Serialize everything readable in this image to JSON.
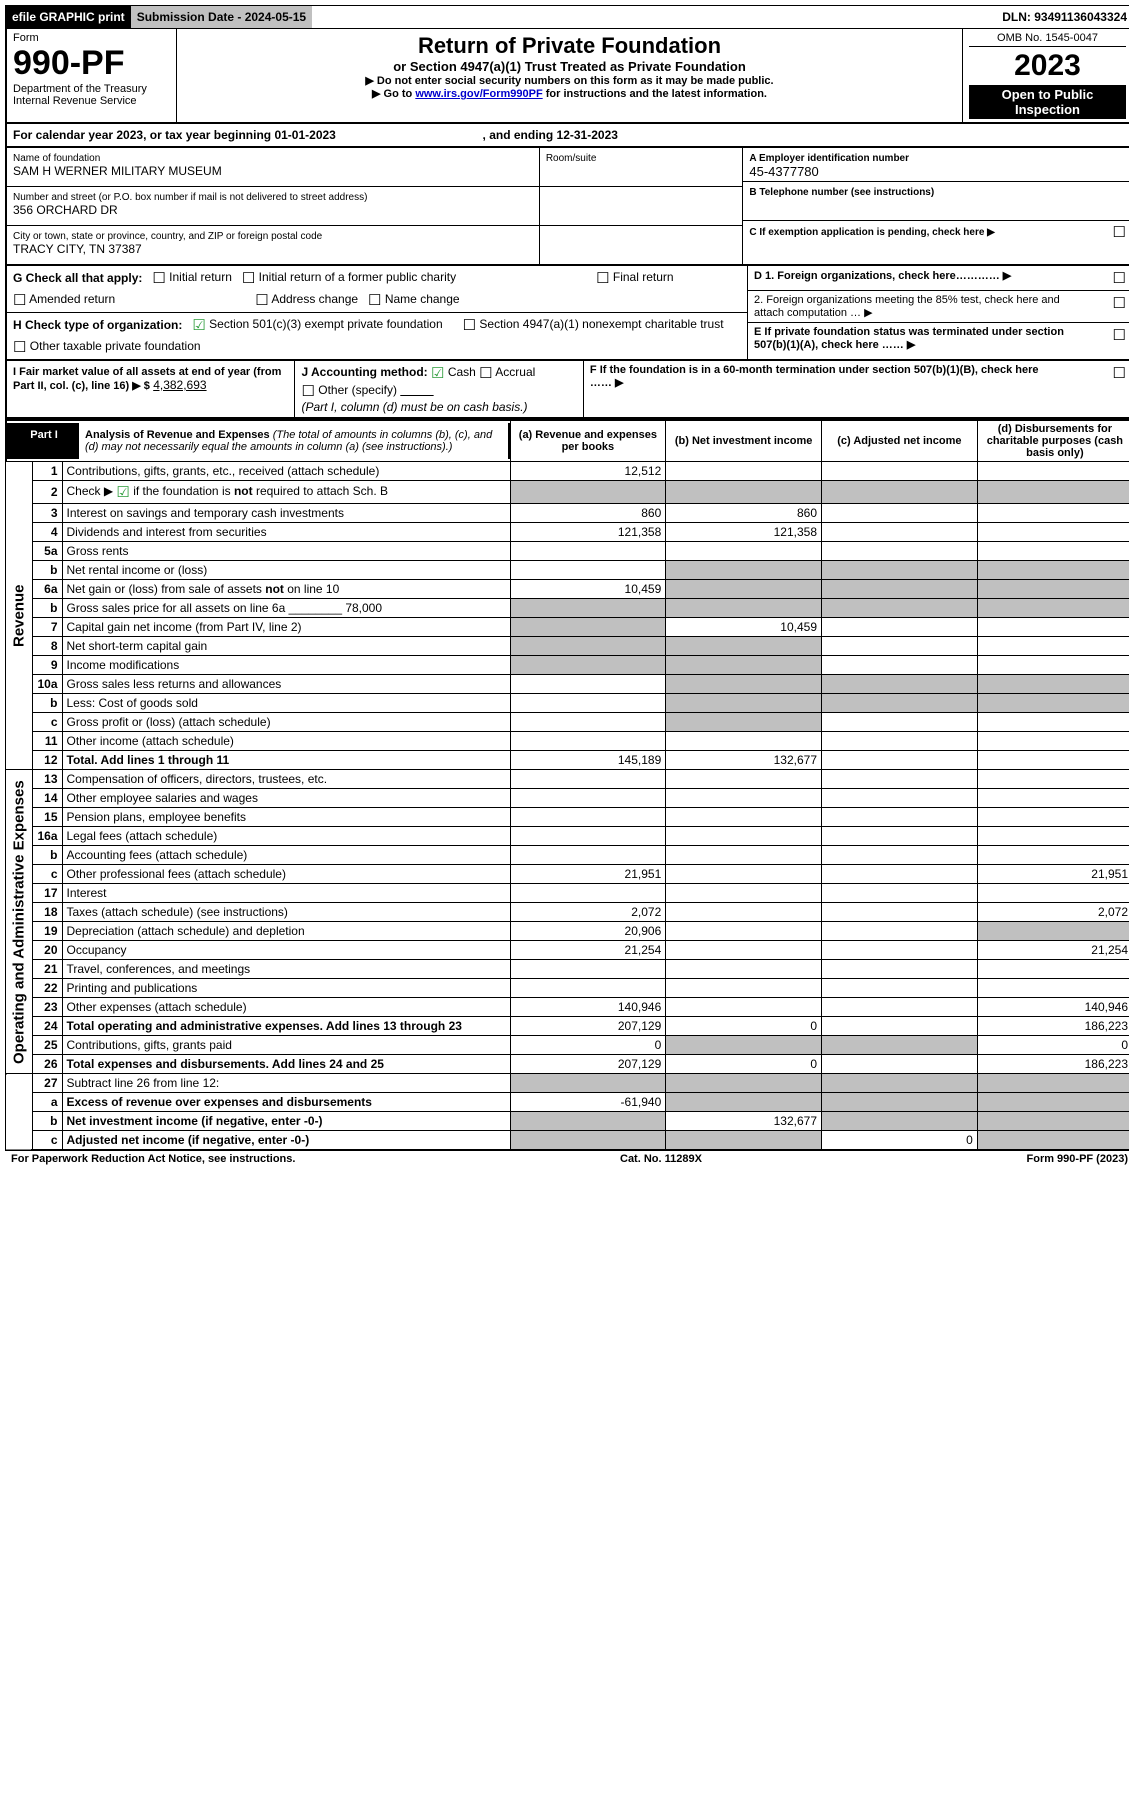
{
  "topbar": {
    "efile": "efile GRAPHIC print",
    "submission": "Submission Date - 2024-05-15",
    "dln": "DLN: 93491136043324"
  },
  "header": {
    "form_label": "Form",
    "form_number": "990-PF",
    "dept": "Department of the Treasury",
    "irs": "Internal Revenue Service",
    "title": "Return of Private Foundation",
    "subtitle": "or Section 4947(a)(1) Trust Treated as Private Foundation",
    "warn1": "▶ Do not enter social security numbers on this form as it may be made public.",
    "warn2": "▶ Go to ",
    "warn2_link": "www.irs.gov/Form990PF",
    "warn2_after": " for instructions and the latest information.",
    "omb": "OMB No. 1545-0047",
    "year": "2023",
    "open": "Open to Public Inspection"
  },
  "calendar": {
    "text1": "For calendar year 2023, or tax year beginning ",
    "begin": "01-01-2023",
    "text2": ", and ending ",
    "end": "12-31-2023"
  },
  "org": {
    "name_label": "Name of foundation",
    "name": "SAM H WERNER MILITARY MUSEUM",
    "addr_label": "Number and street (or P.O. box number if mail is not delivered to street address)",
    "addr": "356 ORCHARD DR",
    "room_label": "Room/suite",
    "city_label": "City or town, state or province, country, and ZIP or foreign postal code",
    "city": "TRACY CITY, TN  37387"
  },
  "right": {
    "a_label": "A Employer identification number",
    "a_val": "45-4377780",
    "b_label": "B Telephone number (see instructions)",
    "c_label": "C If exemption application is pending, check here ▶",
    "d1_label": "D 1. Foreign organizations, check here………… ▶",
    "d2_label": "2. Foreign organizations meeting the 85% test, check here and attach computation … ▶",
    "e_label": "E If private foundation status was terminated under section 507(b)(1)(A), check here …… ▶",
    "f_label": "F If the foundation is in a 60-month termination under section 507(b)(1)(B), check here …… ▶"
  },
  "g": {
    "prefix": "G Check all that apply:",
    "opts": [
      "Initial return",
      "Initial return of a former public charity",
      "Final return",
      "Amended return",
      "Address change",
      "Name change"
    ]
  },
  "h": {
    "prefix": "H Check type of organization:",
    "opt1": "Section 501(c)(3) exempt private foundation",
    "opt2": "Section 4947(a)(1) nonexempt charitable trust",
    "opt3": "Other taxable private foundation"
  },
  "i": {
    "label": "I Fair market value of all assets at end of year (from Part II, col. (c), line 16) ▶ $",
    "value": "4,382,693"
  },
  "j": {
    "label": "J Accounting method:",
    "cash": "Cash",
    "accrual": "Accrual",
    "other": "Other (specify)",
    "note": "(Part I, column (d) must be on cash basis.)"
  },
  "part1": {
    "label": "Part I",
    "title": "Analysis of Revenue and Expenses",
    "note": "(The total of amounts in columns (b), (c), and (d) may not necessarily equal the amounts in column (a) (see instructions).)"
  },
  "cols": {
    "a": "(a) Revenue and expenses per books",
    "b": "(b) Net investment income",
    "c": "(c) Adjusted net income",
    "d": "(d) Disbursements for charitable purposes (cash basis only)"
  },
  "sides": {
    "rev": "Revenue",
    "exp": "Operating and Administrative Expenses"
  },
  "rows": [
    {
      "s": "rev",
      "n": "1",
      "l": "Contributions, gifts, grants, etc., received (attach schedule)",
      "a": "12,512",
      "b": "",
      "c": "",
      "d": ""
    },
    {
      "s": "rev",
      "n": "2",
      "l": "Check ▶ ☑ if the foundation is not required to attach Sch. B",
      "gray_bcd": true,
      "gray_a": true
    },
    {
      "s": "rev",
      "n": "3",
      "l": "Interest on savings and temporary cash investments",
      "a": "860",
      "b": "860",
      "c": "",
      "d": ""
    },
    {
      "s": "rev",
      "n": "4",
      "l": "Dividends and interest from securities",
      "a": "121,358",
      "b": "121,358",
      "c": "",
      "d": ""
    },
    {
      "s": "rev",
      "n": "5a",
      "l": "Gross rents",
      "a": "",
      "b": "",
      "c": "",
      "d": ""
    },
    {
      "s": "rev",
      "n": "b",
      "l": "Net rental income or (loss)",
      "gray_bcd": true
    },
    {
      "s": "rev",
      "n": "6a",
      "l": "Net gain or (loss) from sale of assets not on line 10",
      "a": "10,459",
      "gray_bcd": true
    },
    {
      "s": "rev",
      "n": "b",
      "l": "Gross sales price for all assets on line 6a ________ 78,000",
      "gray_a": true,
      "gray_bcd": true
    },
    {
      "s": "rev",
      "n": "7",
      "l": "Capital gain net income (from Part IV, line 2)",
      "gray_a": true,
      "b": "10,459",
      "c": "",
      "d": ""
    },
    {
      "s": "rev",
      "n": "8",
      "l": "Net short-term capital gain",
      "gray_a": true,
      "gray_b": true,
      "c": "",
      "d": ""
    },
    {
      "s": "rev",
      "n": "9",
      "l": "Income modifications",
      "gray_a": true,
      "gray_b": true,
      "c": "",
      "d": ""
    },
    {
      "s": "rev",
      "n": "10a",
      "l": "Gross sales less returns and allowances",
      "gray_bcd": true
    },
    {
      "s": "rev",
      "n": "b",
      "l": "Less: Cost of goods sold",
      "gray_bcd": true
    },
    {
      "s": "rev",
      "n": "c",
      "l": "Gross profit or (loss) (attach schedule)",
      "a": "",
      "gray_b": true,
      "c": "",
      "d": ""
    },
    {
      "s": "rev",
      "n": "11",
      "l": "Other income (attach schedule)",
      "a": "",
      "b": "",
      "c": "",
      "d": ""
    },
    {
      "s": "rev",
      "n": "12",
      "l": "Total. Add lines 1 through 11",
      "bold": true,
      "a": "145,189",
      "b": "132,677",
      "c": "",
      "d": ""
    },
    {
      "s": "exp",
      "n": "13",
      "l": "Compensation of officers, directors, trustees, etc.",
      "a": "",
      "b": "",
      "c": "",
      "d": ""
    },
    {
      "s": "exp",
      "n": "14",
      "l": "Other employee salaries and wages",
      "a": "",
      "b": "",
      "c": "",
      "d": ""
    },
    {
      "s": "exp",
      "n": "15",
      "l": "Pension plans, employee benefits",
      "a": "",
      "b": "",
      "c": "",
      "d": ""
    },
    {
      "s": "exp",
      "n": "16a",
      "l": "Legal fees (attach schedule)",
      "a": "",
      "b": "",
      "c": "",
      "d": ""
    },
    {
      "s": "exp",
      "n": "b",
      "l": "Accounting fees (attach schedule)",
      "a": "",
      "b": "",
      "c": "",
      "d": ""
    },
    {
      "s": "exp",
      "n": "c",
      "l": "Other professional fees (attach schedule)",
      "a": "21,951",
      "b": "",
      "c": "",
      "d": "21,951"
    },
    {
      "s": "exp",
      "n": "17",
      "l": "Interest",
      "a": "",
      "b": "",
      "c": "",
      "d": ""
    },
    {
      "s": "exp",
      "n": "18",
      "l": "Taxes (attach schedule) (see instructions)",
      "a": "2,072",
      "b": "",
      "c": "",
      "d": "2,072"
    },
    {
      "s": "exp",
      "n": "19",
      "l": "Depreciation (attach schedule) and depletion",
      "a": "20,906",
      "b": "",
      "c": "",
      "d": "",
      "gray_d": true
    },
    {
      "s": "exp",
      "n": "20",
      "l": "Occupancy",
      "a": "21,254",
      "b": "",
      "c": "",
      "d": "21,254"
    },
    {
      "s": "exp",
      "n": "21",
      "l": "Travel, conferences, and meetings",
      "a": "",
      "b": "",
      "c": "",
      "d": ""
    },
    {
      "s": "exp",
      "n": "22",
      "l": "Printing and publications",
      "a": "",
      "b": "",
      "c": "",
      "d": ""
    },
    {
      "s": "exp",
      "n": "23",
      "l": "Other expenses (attach schedule)",
      "a": "140,946",
      "b": "",
      "c": "",
      "d": "140,946"
    },
    {
      "s": "exp",
      "n": "24",
      "l": "Total operating and administrative expenses. Add lines 13 through 23",
      "bold": true,
      "a": "207,129",
      "b": "0",
      "c": "",
      "d": "186,223"
    },
    {
      "s": "exp",
      "n": "25",
      "l": "Contributions, gifts, grants paid",
      "a": "0",
      "b": "",
      "c": "",
      "d": "0",
      "gray_b": true,
      "gray_c": true
    },
    {
      "s": "exp",
      "n": "26",
      "l": "Total expenses and disbursements. Add lines 24 and 25",
      "bold": true,
      "a": "207,129",
      "b": "0",
      "c": "",
      "d": "186,223"
    },
    {
      "s": "last",
      "n": "27",
      "l": "Subtract line 26 from line 12:",
      "gray_a": true,
      "gray_b": true,
      "gray_c": true,
      "gray_d": true
    },
    {
      "s": "last",
      "n": "a",
      "l": "Excess of revenue over expenses and disbursements",
      "bold": true,
      "a": "-61,940",
      "gray_b": true,
      "gray_c": true,
      "gray_d": true
    },
    {
      "s": "last",
      "n": "b",
      "l": "Net investment income (if negative, enter -0-)",
      "bold": true,
      "gray_a": true,
      "b": "132,677",
      "gray_c": true,
      "gray_d": true
    },
    {
      "s": "last",
      "n": "c",
      "l": "Adjusted net income (if negative, enter -0-)",
      "bold": true,
      "gray_a": true,
      "gray_b": true,
      "c": "0",
      "gray_d": true
    }
  ],
  "footer": {
    "l": "For Paperwork Reduction Act Notice, see instructions.",
    "c": "Cat. No. 11289X",
    "r": "Form 990-PF (2023)"
  }
}
